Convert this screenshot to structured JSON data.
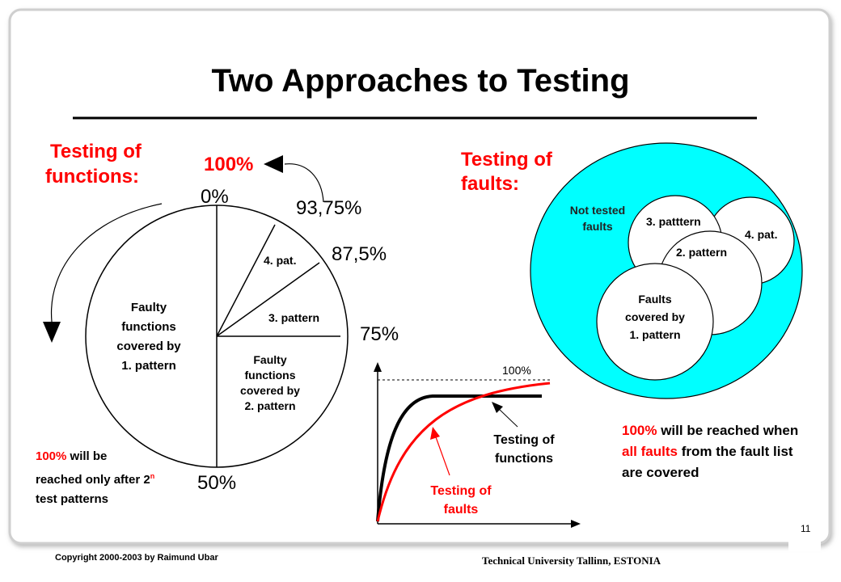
{
  "slide": {
    "title": "Two Approaches to Testing",
    "page_number": "11",
    "copyright": "Copyright 2000-2003 by Raimund Ubar",
    "institution": "Technical University Tallinn, ESTONIA"
  },
  "functions_panel": {
    "heading_line1": "Testing of",
    "heading_line2": "functions:",
    "label_100": "100%",
    "label_0": "0%",
    "label_9375": "93,75%",
    "label_875": "87,5%",
    "label_75": "75%",
    "label_50": "50%",
    "slice_4": "4. pat.",
    "slice_3": "3. pattern",
    "slice_2_lines": [
      "Faulty",
      "functions",
      "covered by",
      "2. pattern"
    ],
    "slice_1_lines": [
      "Faulty",
      "functions",
      "covered by",
      "1. pattern"
    ],
    "note_prefix": "100%",
    "note_mid": " will be reached only after 2",
    "note_sup": "n",
    "note_suffix": " test patterns"
  },
  "faults_panel": {
    "heading_line1": "Testing of",
    "heading_line2": "faults:",
    "not_tested_line1": "Not tested",
    "not_tested_line2": "faults",
    "pattern3": "3. patttern",
    "pattern4": "4. pat.",
    "pattern2": "2. pattern",
    "pattern1_lines": [
      "Faults",
      "covered by",
      "1. pattern"
    ],
    "note_prefix": "100%",
    "note_mid": " will be reached when ",
    "note_highlight": "all faults",
    "note_suffix": " from the fault list are covered"
  },
  "curves_panel": {
    "label_100": "100%",
    "functions_label_line1": "Testing of",
    "functions_label_line2": "functions",
    "faults_label_line1": "Testing of",
    "faults_label_line2": "faults"
  },
  "colors": {
    "accent_red": "#ff0000",
    "venn_cyan": "#00ffff",
    "line_black": "#000000"
  }
}
